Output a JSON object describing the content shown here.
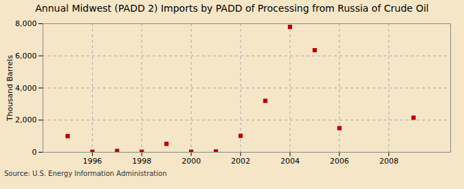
{
  "chart_data": {
    "type": "scatter",
    "title": "Annual Midwest (PADD 2) Imports by PADD of Processing from Russia of Crude Oil",
    "y_label": "Thousand Barrels",
    "source": "Source: U.S. Energy Information Administration",
    "x": [
      1995,
      1996,
      1997,
      1998,
      1999,
      2000,
      2001,
      2002,
      2003,
      2004,
      2005,
      2006,
      2009
    ],
    "values": [
      1000,
      30,
      80,
      30,
      520,
      30,
      50,
      1020,
      3200,
      7800,
      6350,
      1500,
      2150
    ],
    "color": "#bb0000",
    "marker": "square",
    "xlim": [
      1994.0,
      2010.5
    ],
    "xticks": [
      1996,
      1998,
      2000,
      2002,
      2004,
      2006,
      2008
    ],
    "ylim": [
      0,
      8000
    ],
    "yticks": [
      0,
      {
        "value": 2000,
        "label": "2,000"
      },
      {
        "value": 4000,
        "label": "4,000"
      },
      {
        "value": 6000,
        "label": "6,000"
      },
      {
        "value": 8000,
        "label": "8,000"
      }
    ],
    "grid": true
  }
}
